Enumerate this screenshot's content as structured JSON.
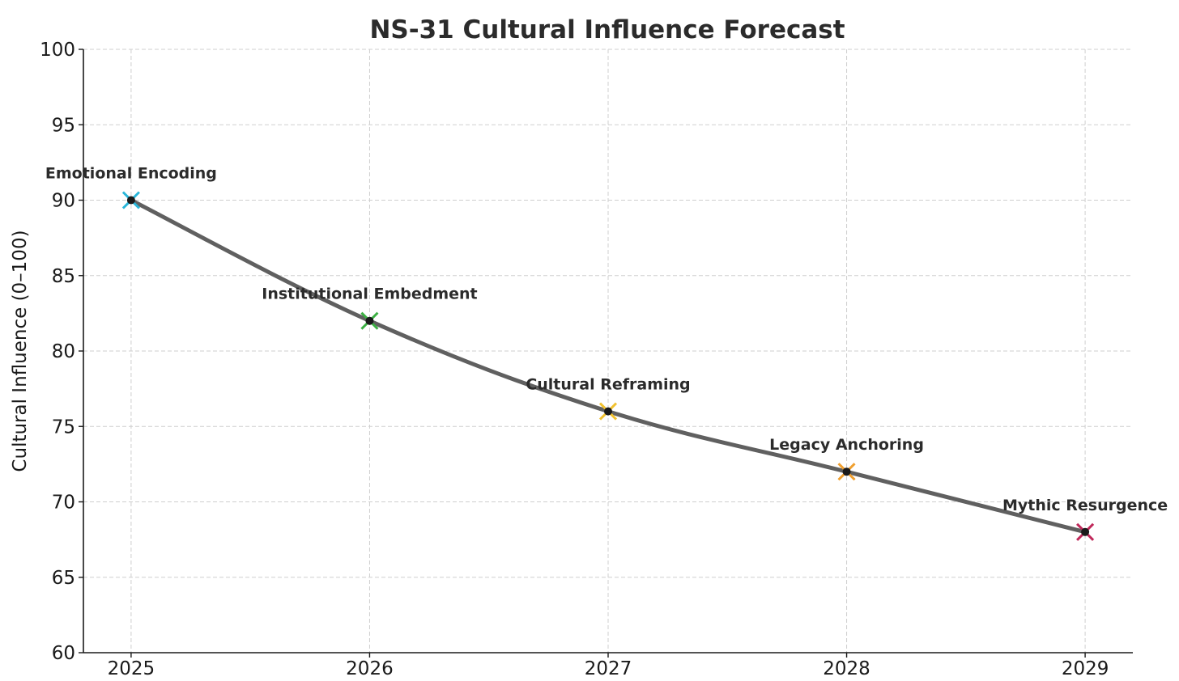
{
  "chart_data": {
    "type": "line",
    "title": "NS-31 Cultural Influence Forecast",
    "xlabel": "",
    "ylabel": "Cultural Influence (0–100)",
    "x": [
      2025,
      2026,
      2027,
      2028,
      2029
    ],
    "x_tick_labels": [
      "2025",
      "2026",
      "2027",
      "2028",
      "2029"
    ],
    "xlim": [
      2024.8,
      2029.2
    ],
    "ylim": [
      60,
      100
    ],
    "y_ticks": [
      60,
      65,
      70,
      75,
      80,
      85,
      90,
      95,
      100
    ],
    "y_tick_labels": [
      "60",
      "65",
      "70",
      "75",
      "80",
      "85",
      "90",
      "95",
      "100"
    ],
    "grid": true,
    "series": [
      {
        "values": [
          90,
          82,
          76,
          72,
          68
        ],
        "line_color": "#606060"
      }
    ],
    "annotations": [
      {
        "x": 2025,
        "y": 90,
        "label": "Emotional Encoding",
        "marker_color": "#29b6d9"
      },
      {
        "x": 2026,
        "y": 82,
        "label": "Institutional Embedment",
        "marker_color": "#3cb043"
      },
      {
        "x": 2027,
        "y": 76,
        "label": "Cultural Reframing",
        "marker_color": "#f2c230"
      },
      {
        "x": 2028,
        "y": 72,
        "label": "Legacy Anchoring",
        "marker_color": "#f0a030"
      },
      {
        "x": 2029,
        "y": 68,
        "label": "Mythic Resurgence",
        "marker_color": "#c0285a"
      }
    ]
  }
}
